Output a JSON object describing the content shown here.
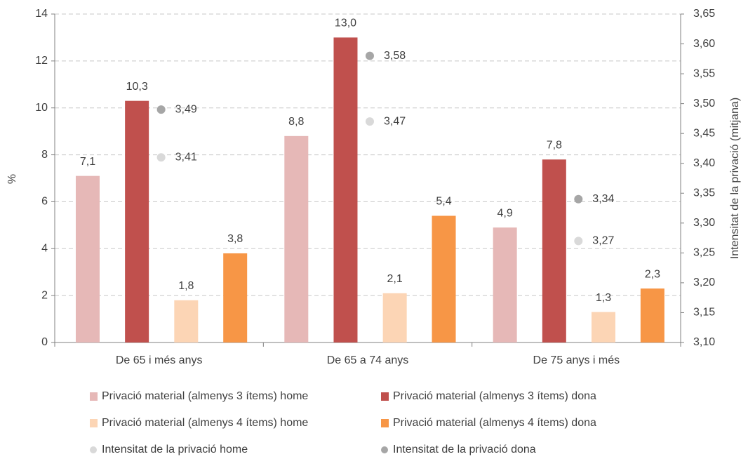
{
  "chart_data": {
    "type": "bar",
    "y_label": "%",
    "y2_label": "Intensitat de la privació (mitjana)",
    "categories": [
      "De 65 i més anys",
      "De 65 a 74 anys",
      "De 75 anys i més"
    ],
    "ylim": [
      0,
      14
    ],
    "yticks": [
      0,
      2,
      4,
      6,
      8,
      10,
      12,
      14
    ],
    "y2lim": [
      3.1,
      3.65
    ],
    "y2ticks": [
      {
        "value": 3.1,
        "label": "3,10"
      },
      {
        "value": 3.15,
        "label": "3,15"
      },
      {
        "value": 3.2,
        "label": "3,20"
      },
      {
        "value": 3.25,
        "label": "3,25"
      },
      {
        "value": 3.3,
        "label": "3,30"
      },
      {
        "value": 3.35,
        "label": "3,35"
      },
      {
        "value": 3.4,
        "label": "3,40"
      },
      {
        "value": 3.45,
        "label": "3,45"
      },
      {
        "value": 3.5,
        "label": "3,50"
      },
      {
        "value": 3.55,
        "label": "3,55"
      },
      {
        "value": 3.6,
        "label": "3,60"
      },
      {
        "value": 3.65,
        "label": "3,65"
      }
    ],
    "grid": true,
    "series": [
      {
        "name": "Privació material (almenys 3 ítems) home",
        "color": "#e6b8b7",
        "values": [
          7.1,
          8.8,
          4.9
        ],
        "value_labels": [
          "7,1",
          "8,8",
          "4,9"
        ]
      },
      {
        "name": "Privació material (almenys 3 ítems) dona",
        "color": "#c0504d",
        "values": [
          10.3,
          13.0,
          7.8
        ],
        "value_labels": [
          "10,3",
          "13,0",
          "7,8"
        ]
      },
      {
        "name": "Privació material (almenys 4 ítems) home",
        "color": "#fcd5b5",
        "values": [
          1.8,
          2.1,
          1.3
        ],
        "value_labels": [
          "1,8",
          "2,1",
          "1,3"
        ]
      },
      {
        "name": "Privació material (almenys 4 ítems) dona",
        "color": "#f79646",
        "values": [
          3.8,
          5.4,
          2.3
        ],
        "value_labels": [
          "3,8",
          "5,4",
          "2,3"
        ]
      },
      {
        "name": "Intensitat de la privació home",
        "color": "#d9d9d9",
        "type": "scatter",
        "axis": "y2",
        "values": [
          3.41,
          3.47,
          3.27
        ],
        "value_labels": [
          "3,41",
          "3,47",
          "3,27"
        ]
      },
      {
        "name": "Intensitat de la privació dona",
        "color": "#a6a6a6",
        "type": "scatter",
        "axis": "y2",
        "values": [
          3.49,
          3.58,
          3.34
        ],
        "value_labels": [
          "3,49",
          "3,58",
          "3,34"
        ]
      }
    ]
  }
}
